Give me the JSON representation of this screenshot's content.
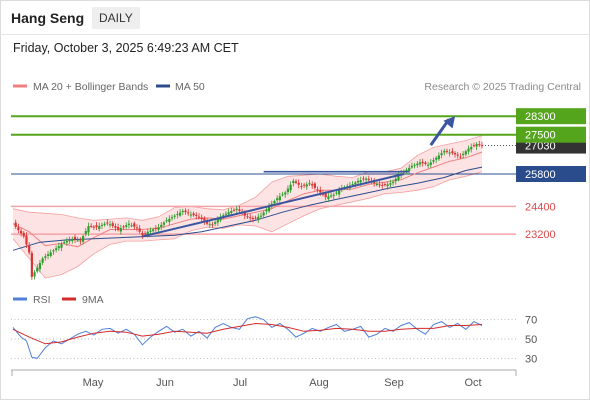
{
  "header": {
    "title": "Hang Seng",
    "timeframe": "DAILY",
    "timestamp": "Friday, October 3, 2025 6:49:23 AM CET"
  },
  "legend": {
    "bollinger": "MA 20 + Bollinger Bands",
    "ma50": "MA 50",
    "rsi": "RSI",
    "rsi_ma": "9MA",
    "credit": "Research © 2025 Trading Central"
  },
  "colors": {
    "bull": "#2b9e2b",
    "bear": "#d93434",
    "bollinger": "#ef7f7f",
    "band_fill": "#fde3e3",
    "ma50": "#2b4c8c",
    "trend": "#3b55a0",
    "support": "#f4a3a8",
    "resistance": "#55a51c",
    "pivot": "#2b4c8c",
    "rsi": "#4f7fd6",
    "rsi_ma": "#d42b2b"
  },
  "chart_data": [
    {
      "type": "candlestick",
      "ylim": [
        21000,
        29000
      ],
      "x_ticks": [
        "May",
        "Jun",
        "Jul",
        "Aug",
        "Sep",
        "Oct"
      ],
      "levels": [
        {
          "value": 28300,
          "label": "28300",
          "kind": "resistance"
        },
        {
          "value": 27500,
          "label": "27500",
          "kind": "resistance"
        },
        {
          "value": 27030,
          "label": "27030",
          "kind": "last"
        },
        {
          "value": 25800,
          "label": "25800",
          "kind": "pivot"
        },
        {
          "value": 24400,
          "label": "24400",
          "kind": "support"
        },
        {
          "value": 23200,
          "label": "23200",
          "kind": "support"
        }
      ],
      "candles": {
        "close_path": [
          [
            0,
            23650
          ],
          [
            4,
            23100
          ],
          [
            6,
            22400
          ],
          [
            7,
            21350
          ],
          [
            8,
            21550
          ],
          [
            11,
            22150
          ],
          [
            15,
            22500
          ],
          [
            19,
            22850
          ],
          [
            22,
            23000
          ],
          [
            25,
            22900
          ],
          [
            28,
            23550
          ],
          [
            31,
            23500
          ],
          [
            35,
            23700
          ],
          [
            39,
            23400
          ],
          [
            43,
            23650
          ],
          [
            46,
            23450
          ],
          [
            48,
            23150
          ],
          [
            50,
            23300
          ],
          [
            54,
            23500
          ],
          [
            57,
            23800
          ],
          [
            60,
            24000
          ],
          [
            63,
            24200
          ],
          [
            66,
            24050
          ],
          [
            69,
            23950
          ],
          [
            72,
            23650
          ],
          [
            74,
            23600
          ],
          [
            77,
            23950
          ],
          [
            80,
            24150
          ],
          [
            83,
            24300
          ],
          [
            86,
            24000
          ],
          [
            89,
            23850
          ],
          [
            92,
            24000
          ],
          [
            95,
            24400
          ],
          [
            98,
            24750
          ],
          [
            101,
            25000
          ],
          [
            104,
            25500
          ],
          [
            107,
            25250
          ],
          [
            110,
            25400
          ],
          [
            113,
            25100
          ],
          [
            116,
            24800
          ],
          [
            119,
            24900
          ],
          [
            122,
            25200
          ],
          [
            125,
            25300
          ],
          [
            128,
            25500
          ],
          [
            131,
            25600
          ],
          [
            134,
            25400
          ],
          [
            137,
            25300
          ],
          [
            139,
            25350
          ],
          [
            141,
            25450
          ],
          [
            143,
            25750
          ],
          [
            145,
            25900
          ],
          [
            148,
            26150
          ],
          [
            151,
            26300
          ],
          [
            154,
            26200
          ],
          [
            157,
            26500
          ],
          [
            160,
            26800
          ],
          [
            163,
            26700
          ],
          [
            166,
            26550
          ],
          [
            169,
            26900
          ],
          [
            172,
            27100
          ],
          [
            174,
            27030
          ]
        ],
        "end_date": "Oct 3"
      },
      "ma20": [
        [
          0,
          23650
        ],
        [
          6,
          23300
        ],
        [
          12,
          22700
        ],
        [
          18,
          22800
        ],
        [
          24,
          22650
        ],
        [
          30,
          23050
        ],
        [
          36,
          23400
        ],
        [
          42,
          23400
        ],
        [
          48,
          23400
        ],
        [
          54,
          23450
        ],
        [
          60,
          23650
        ],
        [
          66,
          23850
        ],
        [
          72,
          23900
        ],
        [
          78,
          23850
        ],
        [
          84,
          24000
        ],
        [
          90,
          24150
        ],
        [
          96,
          24300
        ],
        [
          102,
          24650
        ],
        [
          108,
          24950
        ],
        [
          114,
          25100
        ],
        [
          120,
          25100
        ],
        [
          126,
          25150
        ],
        [
          132,
          25350
        ],
        [
          138,
          25450
        ],
        [
          144,
          25550
        ],
        [
          150,
          25850
        ],
        [
          156,
          26100
        ],
        [
          162,
          26350
        ],
        [
          168,
          26500
        ],
        [
          174,
          26750
        ]
      ],
      "bb_upper": [
        [
          0,
          24300
        ],
        [
          6,
          24150
        ],
        [
          12,
          24100
        ],
        [
          18,
          24050
        ],
        [
          24,
          23900
        ],
        [
          30,
          23800
        ],
        [
          36,
          23850
        ],
        [
          42,
          23900
        ],
        [
          48,
          23800
        ],
        [
          54,
          23950
        ],
        [
          60,
          24350
        ],
        [
          66,
          24400
        ],
        [
          72,
          24300
        ],
        [
          78,
          24250
        ],
        [
          84,
          24450
        ],
        [
          90,
          24800
        ],
        [
          96,
          25450
        ],
        [
          102,
          25700
        ],
        [
          108,
          25750
        ],
        [
          114,
          25800
        ],
        [
          120,
          25700
        ],
        [
          126,
          25650
        ],
        [
          132,
          25900
        ],
        [
          138,
          25900
        ],
        [
          144,
          26050
        ],
        [
          150,
          26600
        ],
        [
          156,
          26950
        ],
        [
          162,
          27100
        ],
        [
          168,
          27250
        ],
        [
          174,
          27450
        ]
      ],
      "bb_lower": [
        [
          0,
          23000
        ],
        [
          6,
          22150
        ],
        [
          12,
          21300
        ],
        [
          18,
          21450
        ],
        [
          24,
          21800
        ],
        [
          30,
          22350
        ],
        [
          36,
          22750
        ],
        [
          42,
          22900
        ],
        [
          48,
          22900
        ],
        [
          54,
          22950
        ],
        [
          60,
          23000
        ],
        [
          66,
          23350
        ],
        [
          72,
          23500
        ],
        [
          78,
          23450
        ],
        [
          84,
          23600
        ],
        [
          90,
          23550
        ],
        [
          96,
          23300
        ],
        [
          102,
          23650
        ],
        [
          108,
          24000
        ],
        [
          114,
          24300
        ],
        [
          120,
          24450
        ],
        [
          126,
          24600
        ],
        [
          132,
          24750
        ],
        [
          138,
          24950
        ],
        [
          144,
          25000
        ],
        [
          150,
          25100
        ],
        [
          156,
          25250
        ],
        [
          162,
          25550
        ],
        [
          168,
          25700
        ],
        [
          174,
          25900
        ]
      ],
      "ma50": [
        [
          0,
          22500
        ],
        [
          10,
          22850
        ],
        [
          20,
          22950
        ],
        [
          30,
          23000
        ],
        [
          40,
          23050
        ],
        [
          50,
          23100
        ],
        [
          60,
          23150
        ],
        [
          70,
          23300
        ],
        [
          80,
          23550
        ],
        [
          90,
          23800
        ],
        [
          100,
          24150
        ],
        [
          110,
          24450
        ],
        [
          120,
          24700
        ],
        [
          130,
          24950
        ],
        [
          140,
          25200
        ],
        [
          150,
          25400
        ],
        [
          160,
          25650
        ],
        [
          168,
          25950
        ],
        [
          174,
          26100
        ]
      ],
      "trendlines": [
        {
          "points": [
            [
              48,
              23100
            ],
            [
              145,
              25800
            ]
          ],
          "kind": "support-trend"
        },
        {
          "points": [
            [
              93,
              25900
            ],
            [
              147,
              25900
            ]
          ],
          "kind": "range-top"
        }
      ],
      "forecast_arrow": {
        "from": [
          155,
          27050
        ],
        "to": [
          164,
          28300
        ]
      }
    },
    {
      "type": "line",
      "name": "RSI",
      "ylim": [
        20,
        80
      ],
      "y_ticks": [
        70,
        50,
        30
      ],
      "rsi": [
        [
          0,
          62
        ],
        [
          3,
          52
        ],
        [
          5,
          48
        ],
        [
          7,
          31
        ],
        [
          9,
          30
        ],
        [
          12,
          41
        ],
        [
          15,
          48
        ],
        [
          18,
          45
        ],
        [
          21,
          50
        ],
        [
          24,
          55
        ],
        [
          27,
          58
        ],
        [
          30,
          54
        ],
        [
          33,
          60
        ],
        [
          36,
          61
        ],
        [
          39,
          56
        ],
        [
          42,
          60
        ],
        [
          45,
          55
        ],
        [
          48,
          44
        ],
        [
          51,
          52
        ],
        [
          54,
          58
        ],
        [
          57,
          63
        ],
        [
          60,
          57
        ],
        [
          63,
          60
        ],
        [
          66,
          53
        ],
        [
          69,
          58
        ],
        [
          72,
          51
        ],
        [
          75,
          62
        ],
        [
          78,
          66
        ],
        [
          81,
          62
        ],
        [
          84,
          60
        ],
        [
          87,
          71
        ],
        [
          90,
          73
        ],
        [
          93,
          70
        ],
        [
          96,
          62
        ],
        [
          99,
          66
        ],
        [
          102,
          60
        ],
        [
          105,
          52
        ],
        [
          108,
          56
        ],
        [
          111,
          61
        ],
        [
          114,
          58
        ],
        [
          117,
          62
        ],
        [
          120,
          65
        ],
        [
          123,
          58
        ],
        [
          126,
          60
        ],
        [
          129,
          63
        ],
        [
          132,
          52
        ],
        [
          135,
          55
        ],
        [
          138,
          61
        ],
        [
          141,
          58
        ],
        [
          144,
          64
        ],
        [
          147,
          67
        ],
        [
          150,
          60
        ],
        [
          153,
          55
        ],
        [
          156,
          65
        ],
        [
          159,
          68
        ],
        [
          162,
          62
        ],
        [
          165,
          66
        ],
        [
          168,
          60
        ],
        [
          171,
          68
        ],
        [
          174,
          64
        ]
      ],
      "rsi_ma": [
        [
          0,
          60
        ],
        [
          6,
          52
        ],
        [
          12,
          45
        ],
        [
          18,
          47
        ],
        [
          24,
          52
        ],
        [
          30,
          56
        ],
        [
          36,
          58
        ],
        [
          42,
          57
        ],
        [
          48,
          53
        ],
        [
          54,
          55
        ],
        [
          60,
          58
        ],
        [
          66,
          57
        ],
        [
          72,
          56
        ],
        [
          78,
          60
        ],
        [
          84,
          63
        ],
        [
          90,
          66
        ],
        [
          96,
          65
        ],
        [
          102,
          62
        ],
        [
          108,
          58
        ],
        [
          114,
          59
        ],
        [
          120,
          61
        ],
        [
          126,
          60
        ],
        [
          132,
          58
        ],
        [
          138,
          58
        ],
        [
          144,
          60
        ],
        [
          150,
          61
        ],
        [
          156,
          61
        ],
        [
          162,
          64
        ],
        [
          168,
          64
        ],
        [
          174,
          65
        ]
      ]
    }
  ]
}
